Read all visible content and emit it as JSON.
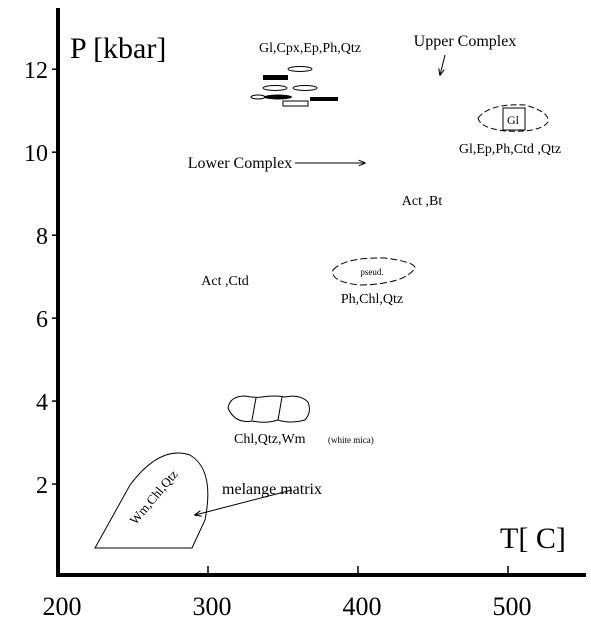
{
  "chart_data": {
    "type": "phase-diagram",
    "x_label": "T[ C]",
    "y_label": "P [kbar]",
    "xlim": [
      200,
      550
    ],
    "xticks": [
      200,
      300,
      400,
      500
    ],
    "ylim": [
      0,
      13.5
    ],
    "yticks": [
      2,
      4,
      6,
      8,
      10,
      12
    ],
    "annotations": [
      "Gl,Cpx,Ep,Ph,Qtz",
      "Upper Complex",
      "Gl",
      "Gl,Ep,Ph,Ctd ,Qtz",
      "Lower Complex",
      "Act ,Bt",
      "Act ,Ctd",
      "pseud.",
      "Ph,Chl,Qtz",
      "Chl,Qtz,Wm",
      "(white mica)",
      "Wm,Chl,Qtz",
      "melange matrix"
    ]
  }
}
